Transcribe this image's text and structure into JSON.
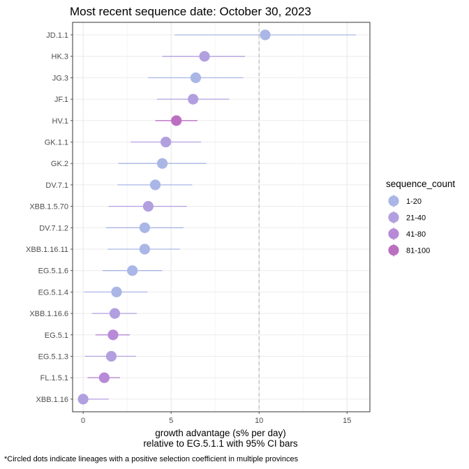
{
  "chart_data": {
    "type": "scatter",
    "title": "Most recent sequence date: October 30, 2023",
    "xlabel_line1": "growth advantage (s% per day)",
    "xlabel_line2": "relative to  EG.5.1.1  with 95% CI bars",
    "caption": "*Circled dots indicate lineages with a positive selection coefficient in multiple provinces",
    "xlim": [
      -0.6,
      16.3
    ],
    "x_ticks": [
      0,
      5,
      10,
      15
    ],
    "reference_line_x": 10,
    "grid": true,
    "legend": {
      "title": "sequence_count",
      "position": "right",
      "entries": [
        {
          "label": "1-20",
          "color": "#a9b6e6"
        },
        {
          "label": "21-40",
          "color": "#b29fdf"
        },
        {
          "label": "41-80",
          "color": "#b789d6"
        },
        {
          "label": "81-100",
          "color": "#bb6fc0"
        }
      ]
    },
    "points": [
      {
        "lineage": "JD.1.1",
        "value": 10.35,
        "lower": 5.2,
        "upper": 15.5,
        "count_group": "1-20"
      },
      {
        "lineage": "HK.3",
        "value": 6.9,
        "lower": 4.5,
        "upper": 9.2,
        "count_group": "21-40"
      },
      {
        "lineage": "JG.3",
        "value": 6.4,
        "lower": 3.7,
        "upper": 9.1,
        "count_group": "1-20"
      },
      {
        "lineage": "JF.1",
        "value": 6.25,
        "lower": 4.2,
        "upper": 8.3,
        "count_group": "21-40"
      },
      {
        "lineage": "HV.1",
        "value": 5.3,
        "lower": 4.1,
        "upper": 6.5,
        "count_group": "81-100"
      },
      {
        "lineage": "GK.1.1",
        "value": 4.7,
        "lower": 2.7,
        "upper": 6.7,
        "count_group": "21-40"
      },
      {
        "lineage": "GK.2",
        "value": 4.5,
        "lower": 2.0,
        "upper": 7.0,
        "count_group": "1-20"
      },
      {
        "lineage": "DV.7.1",
        "value": 4.1,
        "lower": 1.95,
        "upper": 6.2,
        "count_group": "1-20"
      },
      {
        "lineage": "XBB.1.5.70",
        "value": 3.7,
        "lower": 1.45,
        "upper": 5.9,
        "count_group": "21-40"
      },
      {
        "lineage": "DV.7.1.2",
        "value": 3.5,
        "lower": 1.3,
        "upper": 5.7,
        "count_group": "1-20"
      },
      {
        "lineage": "XBB.1.16.11",
        "value": 3.5,
        "lower": 1.4,
        "upper": 5.5,
        "count_group": "1-20"
      },
      {
        "lineage": "EG.5.1.6",
        "value": 2.8,
        "lower": 1.1,
        "upper": 4.5,
        "count_group": "1-20"
      },
      {
        "lineage": "EG.5.1.4",
        "value": 1.9,
        "lower": 0.05,
        "upper": 3.65,
        "count_group": "1-20"
      },
      {
        "lineage": "XBB.1.16.6",
        "value": 1.8,
        "lower": 0.5,
        "upper": 3.05,
        "count_group": "21-40"
      },
      {
        "lineage": "EG.5.1",
        "value": 1.7,
        "lower": 0.7,
        "upper": 2.65,
        "count_group": "41-80"
      },
      {
        "lineage": "EG.5.1.3",
        "value": 1.6,
        "lower": 0.1,
        "upper": 3.0,
        "count_group": "21-40"
      },
      {
        "lineage": "FL.1.5.1",
        "value": 1.2,
        "lower": 0.25,
        "upper": 2.1,
        "count_group": "41-80"
      },
      {
        "lineage": "XBB.1.16",
        "value": 0.0,
        "lower": -0.05,
        "upper": 1.45,
        "count_group": "21-40"
      }
    ]
  }
}
